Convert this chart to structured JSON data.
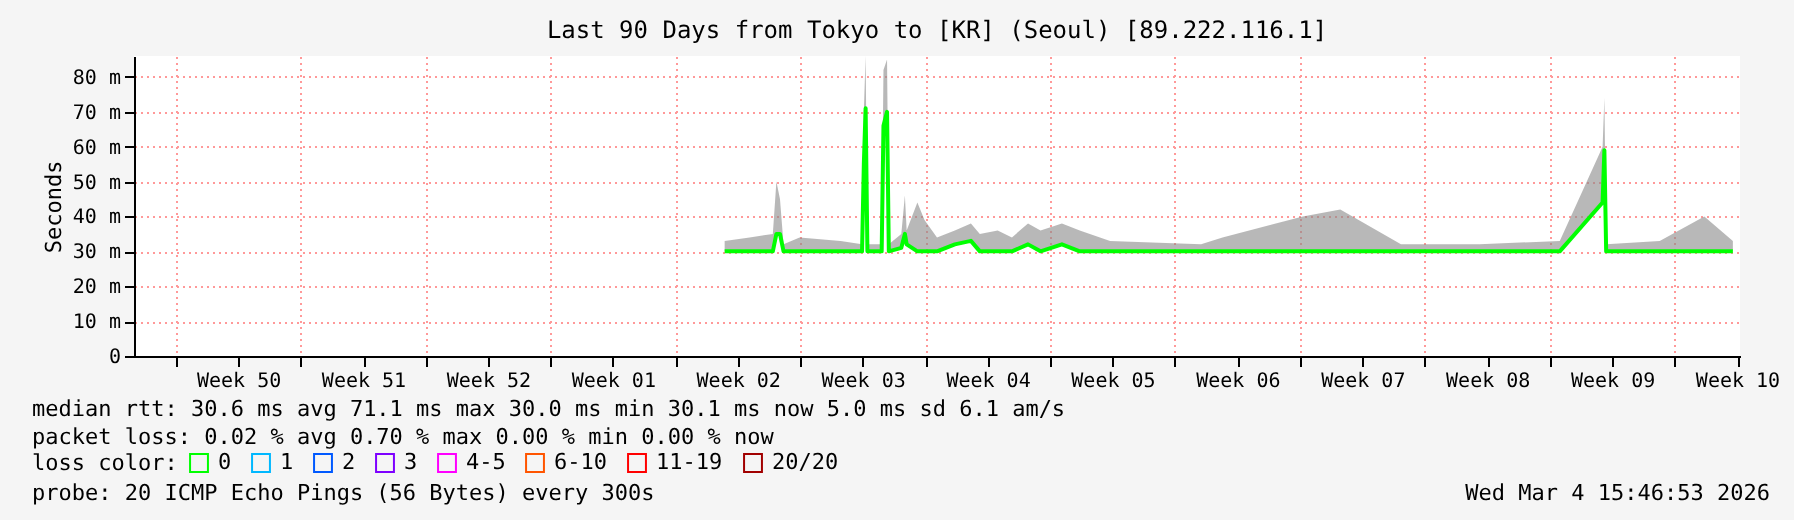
{
  "chart_data": {
    "type": "line",
    "title": "Last 90 Days from Tokyo to [KR] (Seoul) [89.222.116.1]",
    "ylabel": "Seconds",
    "legend_title": "loss color:",
    "legend": "bottom",
    "grid": true,
    "marker": "none",
    "line_style": "solid",
    "x": [
      "2026-01-06T18:24",
      "2026-01-08T04:00",
      "2026-01-09T11:12",
      "2026-01-09T16:00",
      "2026-01-09T20:48",
      "2026-01-10T01:36",
      "2026-01-10T23:12",
      "2026-01-13T06:24",
      "2026-01-14T11:12",
      "2026-01-14T13:36",
      "2026-01-14T16:00",
      "2026-01-14T18:24",
      "2026-01-15T13:36",
      "2026-01-15T16:00",
      "2026-01-15T20:48",
      "2026-01-15T23:12",
      "2026-01-16T16:00",
      "2026-01-16T20:48",
      "2026-01-16T23:12",
      "2026-01-17T13:36",
      "2026-01-17T23:12",
      "2026-01-18T16:00",
      "2026-01-19T16:00",
      "2026-01-20T13:36",
      "2026-01-21T01:36",
      "2026-01-22T01:36",
      "2026-01-22T20:48",
      "2026-01-23T18:24",
      "2026-01-24T11:12",
      "2026-01-25T16:00",
      "2026-01-26T16:00",
      "2026-01-28T08:48",
      "2026-02-02T11:12",
      "2026-02-03T16:00",
      "2026-02-08T04:00",
      "2026-02-10T06:24",
      "2026-02-13T16:00",
      "2026-02-18T01:36",
      "2026-02-22T13:36",
      "2026-02-24T23:12",
      "2026-02-25T01:36",
      "2026-02-25T04:00",
      "2026-02-28T04:00",
      "2026-03-02T16:00",
      "2026-03-04T06:24"
    ],
    "series": [
      {
        "name": "0",
        "color": "#00ff00",
        "values": [
          30,
          30,
          30,
          35,
          35,
          30,
          30,
          30,
          30,
          55,
          71,
          30,
          30,
          66,
          70,
          30,
          31,
          35,
          32,
          30,
          30,
          30,
          32,
          33,
          30,
          30,
          30,
          32,
          30,
          32,
          30,
          30,
          30,
          30,
          30,
          30,
          30,
          30,
          30,
          44,
          59,
          30,
          30,
          30,
          30
        ],
        "lower": [
          30,
          30,
          30,
          35,
          35,
          30,
          30,
          30,
          30,
          55,
          71,
          30,
          30,
          66,
          70,
          30,
          31,
          35,
          32,
          30,
          30,
          30,
          32,
          33,
          30,
          30,
          30,
          32,
          30,
          32,
          30,
          30,
          30,
          30,
          30,
          30,
          30,
          30,
          30,
          44,
          59,
          30,
          30,
          30,
          30
        ],
        "upper": [
          33,
          34,
          35,
          50,
          45,
          32,
          34,
          33,
          32,
          70,
          86,
          32,
          32,
          82,
          85,
          32,
          35,
          46,
          36,
          44,
          39,
          34,
          36,
          38,
          35,
          36,
          34,
          38,
          36,
          38,
          36,
          33,
          32,
          34,
          40,
          42,
          32,
          32,
          33,
          60,
          74,
          32,
          33,
          40,
          33
        ]
      },
      {
        "name": "1",
        "color": "#00b8ff",
        "values": [
          null,
          null,
          null,
          null,
          null,
          null,
          null,
          null,
          null,
          null,
          null,
          null,
          null,
          null,
          null,
          null,
          null,
          null,
          null,
          null,
          null,
          null,
          null,
          null,
          null,
          null,
          null,
          null,
          null,
          null,
          null,
          null,
          null,
          null,
          null,
          null,
          null,
          null,
          null,
          null,
          null,
          null,
          null,
          null,
          null
        ]
      },
      {
        "name": "2",
        "color": "#0059ff",
        "values": [
          null,
          null,
          null,
          null,
          null,
          null,
          null,
          null,
          null,
          null,
          null,
          null,
          null,
          null,
          null,
          null,
          null,
          null,
          null,
          null,
          null,
          null,
          null,
          null,
          null,
          null,
          null,
          null,
          null,
          null,
          null,
          null,
          null,
          null,
          null,
          null,
          null,
          null,
          null,
          null,
          null,
          null,
          null,
          null,
          null
        ]
      },
      {
        "name": "3",
        "color": "#7e00ff",
        "values": [
          null,
          null,
          null,
          null,
          null,
          null,
          null,
          null,
          null,
          null,
          null,
          null,
          null,
          null,
          null,
          null,
          null,
          null,
          null,
          null,
          null,
          null,
          null,
          null,
          null,
          null,
          null,
          null,
          null,
          null,
          null,
          null,
          null,
          null,
          null,
          null,
          null,
          null,
          null,
          null,
          null,
          null,
          null,
          null,
          null
        ]
      },
      {
        "name": "4-5",
        "color": "#ff00ff",
        "values": [
          null,
          null,
          null,
          null,
          null,
          null,
          null,
          null,
          null,
          null,
          null,
          null,
          null,
          null,
          null,
          null,
          null,
          null,
          null,
          null,
          null,
          null,
          null,
          null,
          null,
          null,
          null,
          null,
          null,
          null,
          null,
          null,
          null,
          null,
          null,
          null,
          null,
          null,
          null,
          null,
          null,
          null,
          null,
          null,
          null
        ]
      },
      {
        "name": "6-10",
        "color": "#ff5500",
        "values": [
          null,
          null,
          null,
          null,
          null,
          null,
          null,
          null,
          null,
          null,
          null,
          null,
          null,
          null,
          null,
          null,
          null,
          null,
          null,
          null,
          null,
          null,
          null,
          null,
          null,
          null,
          null,
          null,
          null,
          null,
          null,
          null,
          null,
          null,
          null,
          null,
          null,
          null,
          null,
          null,
          null,
          null,
          null,
          null,
          null
        ]
      },
      {
        "name": "11-19",
        "color": "#ff0000",
        "values": [
          null,
          null,
          null,
          null,
          null,
          null,
          null,
          null,
          null,
          null,
          null,
          null,
          null,
          null,
          null,
          null,
          null,
          null,
          null,
          null,
          null,
          null,
          null,
          null,
          null,
          null,
          null,
          null,
          null,
          null,
          null,
          null,
          null,
          null,
          null,
          null,
          null,
          null,
          null,
          null,
          null,
          null,
          null,
          null,
          null
        ]
      },
      {
        "name": "20/20",
        "color": "#a10000",
        "values": [
          null,
          null,
          null,
          null,
          null,
          null,
          null,
          null,
          null,
          null,
          null,
          null,
          null,
          null,
          null,
          null,
          null,
          null,
          null,
          null,
          null,
          null,
          null,
          null,
          null,
          null,
          null,
          null,
          null,
          null,
          null,
          null,
          null,
          null,
          null,
          null,
          null,
          null,
          null,
          null,
          null,
          null,
          null,
          null,
          null
        ]
      }
    ],
    "xlim": [
      "2025-12-04T16:00",
      "2026-03-04T16:00"
    ],
    "xticks": [
      {
        "value": "2025-12-07",
        "label": null
      },
      {
        "value": "2025-12-10T12:00",
        "label": "Week 50"
      },
      {
        "value": "2025-12-14",
        "label": null
      },
      {
        "value": "2025-12-17T12:00",
        "label": "Week 51"
      },
      {
        "value": "2025-12-21",
        "label": null
      },
      {
        "value": "2025-12-24T12:00",
        "label": "Week 52"
      },
      {
        "value": "2025-12-28",
        "label": null
      },
      {
        "value": "2025-12-31T12:00",
        "label": "Week 01"
      },
      {
        "value": "2026-01-04",
        "label": null
      },
      {
        "value": "2026-01-07T12:00",
        "label": "Week 02"
      },
      {
        "value": "2026-01-11",
        "label": null
      },
      {
        "value": "2026-01-14T12:00",
        "label": "Week 03"
      },
      {
        "value": "2026-01-18",
        "label": null
      },
      {
        "value": "2026-01-21T12:00",
        "label": "Week 04"
      },
      {
        "value": "2026-01-25",
        "label": null
      },
      {
        "value": "2026-01-28T12:00",
        "label": "Week 05"
      },
      {
        "value": "2026-02-01",
        "label": null
      },
      {
        "value": "2026-02-04T12:00",
        "label": "Week 06"
      },
      {
        "value": "2026-02-08",
        "label": null
      },
      {
        "value": "2026-02-11T12:00",
        "label": "Week 07"
      },
      {
        "value": "2026-02-15",
        "label": null
      },
      {
        "value": "2026-02-18T12:00",
        "label": "Week 08"
      },
      {
        "value": "2026-02-22",
        "label": null
      },
      {
        "value": "2026-02-25T12:00",
        "label": "Week 09"
      },
      {
        "value": "2026-03-01",
        "label": null
      },
      {
        "value": "2026-03-04T12:00",
        "label": "Week 10"
      }
    ],
    "ylim": [
      0,
      86
    ],
    "yticks": [
      0,
      {
        "value": 10,
        "label": "10 m"
      },
      {
        "value": 20,
        "label": "20 m"
      },
      {
        "value": 30,
        "label": "30 m"
      },
      {
        "value": 40,
        "label": "40 m"
      },
      {
        "value": 50,
        "label": "50 m"
      },
      {
        "value": 60,
        "label": "60 m"
      },
      {
        "value": 70,
        "label": "70 m"
      },
      {
        "value": 80,
        "label": "80 m"
      }
    ],
    "annotations": [
      "median rtt:  30.6 ms avg  71.1 ms max  30.0 ms min  30.1 ms now  5.0 ms sd  6.1   am/s",
      "packet loss: 0.02 % avg  0.70 % max  0.00 % min  0.00 % now",
      "probe:       20 ICMP Echo Pings (56 Bytes) every 300s",
      "Wed Mar  4 15:46:53 2026"
    ]
  }
}
